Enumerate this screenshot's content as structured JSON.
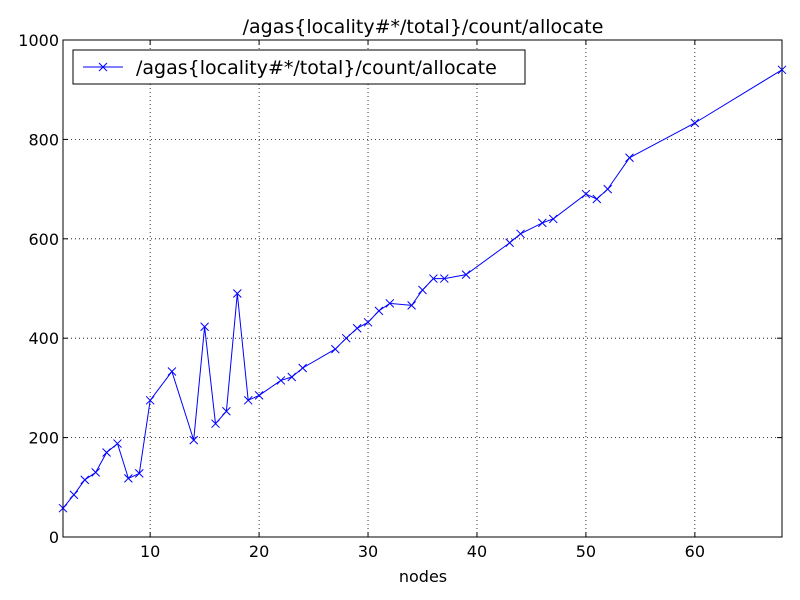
{
  "chart_data": {
    "type": "line",
    "title": "/agas{locality#*/total}/count/allocate",
    "xlabel": "nodes",
    "ylabel": "",
    "xlim": [
      2,
      68
    ],
    "ylim": [
      0,
      1000
    ],
    "xticks": [
      10,
      20,
      30,
      40,
      50,
      60
    ],
    "yticks": [
      0,
      200,
      400,
      600,
      800,
      1000
    ],
    "grid": true,
    "legend_position": "top-left",
    "series": [
      {
        "name": "/agas{locality#*/total}/count/allocate",
        "color": "#0000ff",
        "marker": "x",
        "x": [
          2,
          3,
          4,
          5,
          6,
          7,
          8,
          9,
          10,
          12,
          14,
          15,
          16,
          17,
          18,
          19,
          20,
          22,
          23,
          24,
          27,
          28,
          29,
          30,
          31,
          32,
          34,
          35,
          36,
          37,
          39,
          43,
          44,
          46,
          47,
          50,
          51,
          52,
          54,
          60,
          68
        ],
        "y": [
          58,
          85,
          115,
          130,
          170,
          188,
          118,
          128,
          275,
          333,
          195,
          423,
          228,
          253,
          490,
          275,
          285,
          315,
          322,
          340,
          378,
          400,
          420,
          432,
          455,
          470,
          466,
          497,
          520,
          520,
          528,
          592,
          610,
          632,
          640,
          690,
          680,
          700,
          763,
          833,
          940
        ]
      }
    ]
  }
}
